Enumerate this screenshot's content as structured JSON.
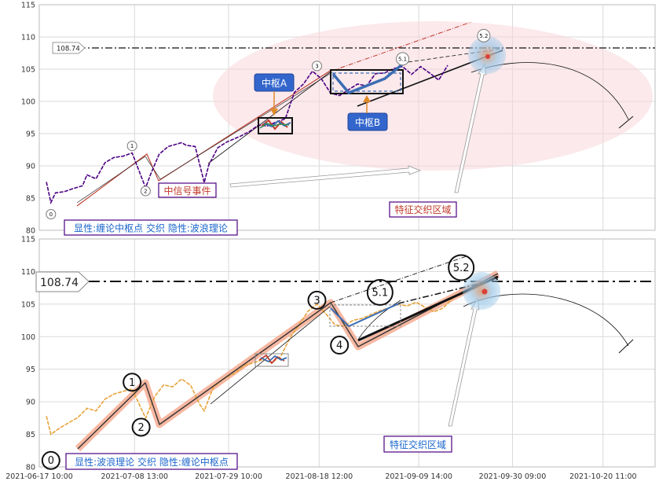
{
  "chart_data": [
    {
      "type": "line",
      "panel": "top",
      "ylim": [
        80,
        115
      ],
      "yticks": [
        80,
        85,
        90,
        95,
        100,
        105,
        110,
        115
      ],
      "xlim": [
        "2021-06-17 10:00",
        "2021-11-01 00:00"
      ],
      "grid": true,
      "hline": {
        "value": 108.74,
        "label": "108.74"
      },
      "series": [
        {
          "values": [
            [
              "2021-06-19",
              87.5
            ],
            [
              "2021-06-20",
              84.3
            ],
            [
              "2021-06-21",
              85.8
            ],
            [
              "2021-06-23",
              86.0
            ],
            [
              "2021-06-25",
              86.5
            ],
            [
              "2021-06-27",
              86.9
            ],
            [
              "2021-06-28",
              88.6
            ],
            [
              "2021-06-30",
              88.0
            ],
            [
              "2021-07-02",
              90.5
            ],
            [
              "2021-07-04",
              91.3
            ],
            [
              "2021-07-06",
              91.5
            ],
            [
              "2021-07-08",
              92.0
            ],
            [
              "2021-07-10",
              88.4
            ],
            [
              "2021-07-11",
              86.6
            ],
            [
              "2021-07-12",
              88.5
            ],
            [
              "2021-07-14",
              91.8
            ],
            [
              "2021-07-16",
              93.0
            ],
            [
              "2021-07-19",
              93.6
            ],
            [
              "2021-07-20",
              93.2
            ],
            [
              "2021-07-22",
              93.0
            ],
            [
              "2021-07-24",
              87.4
            ],
            [
              "2021-07-25",
              90.1
            ],
            [
              "2021-07-27",
              92.8
            ],
            [
              "2021-07-29",
              93.7
            ],
            [
              "2021-08-01",
              94.6
            ],
            [
              "2021-08-03",
              95.3
            ],
            [
              "2021-08-05",
              96.3
            ],
            [
              "2021-08-07",
              96.2
            ],
            [
              "2021-08-09",
              96.8
            ],
            [
              "2021-08-11",
              97.3
            ],
            [
              "2021-08-13",
              101.4
            ],
            [
              "2021-08-15",
              102.7
            ],
            [
              "2021-08-17",
              104.7
            ],
            [
              "2021-08-19",
              103.5
            ],
            [
              "2021-08-21",
              101.3
            ],
            [
              "2021-08-23",
              100.9
            ],
            [
              "2021-08-25",
              101.8
            ],
            [
              "2021-08-27",
              102.7
            ],
            [
              "2021-08-29",
              102.4
            ],
            [
              "2021-08-31",
              104.3
            ],
            [
              "2021-09-02",
              104.4
            ],
            [
              "2021-09-04",
              105.1
            ],
            [
              "2021-09-06",
              105.4
            ],
            [
              "2021-09-08",
              104.2
            ],
            [
              "2021-09-10",
              105.4
            ],
            [
              "2021-09-12",
              104.4
            ],
            [
              "2021-09-14",
              103.3
            ],
            [
              "2021-09-16",
              105.6
            ]
          ]
        }
      ],
      "pivots": [
        {
          "label": "0",
          "x": "2021-06-20",
          "y": 82.5
        },
        {
          "label": "1",
          "x": "2021-07-08",
          "y": 93.1
        },
        {
          "label": "2",
          "x": "2021-07-11",
          "y": 86.1
        },
        {
          "label": "3",
          "x": "2021-08-18",
          "y": 105.5
        },
        {
          "label": "5.1",
          "x": "2021-09-06",
          "y": 106.6
        },
        {
          "label": "5.2",
          "x": "2021-09-24",
          "y": 110.2
        }
      ],
      "annotations": [
        {
          "text": "中枢A",
          "kind": "callout"
        },
        {
          "text": "中枢B",
          "kind": "callout"
        },
        {
          "text": "中信号事件",
          "kind": "text-box"
        },
        {
          "text": "特征交织区域",
          "kind": "text-box"
        },
        {
          "text": "显性:缠论中枢点 交织 隐性:波浪理论",
          "kind": "text-box"
        }
      ]
    },
    {
      "type": "line",
      "panel": "bottom",
      "ylim": [
        80,
        115
      ],
      "yticks": [
        80,
        85,
        90,
        95,
        100,
        105,
        110,
        115
      ],
      "xlim": [
        "2021-06-17 10:00",
        "2021-11-01 00:00"
      ],
      "xticks": [
        "2021-06-17 10:00",
        "2021-07-08 13:00",
        "2021-07-29 10:00",
        "2021-08-18 12:00",
        "2021-09-09 14:00",
        "2021-09-30 09:00",
        "2021-10-20 11:00"
      ],
      "grid": true,
      "hline": {
        "value": 108.74,
        "label": "108.74"
      },
      "series": [
        {
          "values": [
            [
              "2021-06-19",
              87.8
            ],
            [
              "2021-06-20",
              85.0
            ],
            [
              "2021-06-22",
              86.0
            ],
            [
              "2021-06-24",
              86.8
            ],
            [
              "2021-06-26",
              87.6
            ],
            [
              "2021-06-28",
              89.0
            ],
            [
              "2021-06-30",
              88.6
            ],
            [
              "2021-07-02",
              90.4
            ],
            [
              "2021-07-04",
              91.2
            ],
            [
              "2021-07-06",
              91.6
            ],
            [
              "2021-07-08",
              92.0
            ],
            [
              "2021-07-10",
              89.0
            ],
            [
              "2021-07-11",
              87.5
            ],
            [
              "2021-07-13",
              90.8
            ],
            [
              "2021-07-15",
              92.6
            ],
            [
              "2021-07-17",
              92.3
            ],
            [
              "2021-07-19",
              93.5
            ],
            [
              "2021-07-21",
              92.5
            ],
            [
              "2021-07-23",
              89.6
            ],
            [
              "2021-07-24",
              88.6
            ],
            [
              "2021-07-26",
              92.2
            ],
            [
              "2021-07-28",
              93.4
            ],
            [
              "2021-07-31",
              94.5
            ],
            [
              "2021-08-02",
              95.6
            ],
            [
              "2021-08-04",
              96.0
            ],
            [
              "2021-08-06",
              96.5
            ],
            [
              "2021-08-08",
              96.0
            ],
            [
              "2021-08-10",
              97.0
            ],
            [
              "2021-08-12",
              99.8
            ],
            [
              "2021-08-14",
              101.8
            ],
            [
              "2021-08-16",
              103.9
            ],
            [
              "2021-08-18",
              105.0
            ],
            [
              "2021-08-20",
              103.5
            ],
            [
              "2021-08-22",
              101.8
            ],
            [
              "2021-08-24",
              101.6
            ],
            [
              "2021-08-26",
              102.5
            ],
            [
              "2021-08-28",
              102.8
            ],
            [
              "2021-08-30",
              103.4
            ],
            [
              "2021-09-01",
              104.0
            ],
            [
              "2021-09-03",
              104.4
            ],
            [
              "2021-09-05",
              105.0
            ],
            [
              "2021-09-07",
              104.7
            ],
            [
              "2021-09-09",
              105.3
            ],
            [
              "2021-09-11",
              104.5
            ],
            [
              "2021-09-13",
              103.8
            ],
            [
              "2021-09-15",
              104.4
            ],
            [
              "2021-09-17",
              105.8
            ]
          ]
        }
      ],
      "pivots": [
        {
          "label": "0",
          "x": "2021-06-20",
          "y": 81.0
        },
        {
          "label": "1",
          "x": "2021-07-08",
          "y": 93.0
        },
        {
          "label": "2",
          "x": "2021-07-10",
          "y": 86.1
        },
        {
          "label": "3",
          "x": "2021-08-18",
          "y": 105.6
        },
        {
          "label": "4",
          "x": "2021-08-23",
          "y": 98.7
        },
        {
          "label": "5.1",
          "x": "2021-09-01",
          "y": 106.8
        },
        {
          "label": "5.2",
          "x": "2021-09-19",
          "y": 110.6
        }
      ],
      "annotations": [
        {
          "text": "特征交织区域",
          "kind": "text-box"
        },
        {
          "text": "显性:波浪理论 交织 隐性:缠论中枢点",
          "kind": "text-box"
        }
      ]
    }
  ],
  "colors": {
    "price_top": "#4b0082",
    "price_bottom": "#e8a33a",
    "trend_line": "#c0392b",
    "center_box_blue": "#3b6db3",
    "callout_fill": "#3366cc",
    "highlight_band": "#f4a083",
    "ellipse_fill": "#f8d7dc",
    "label_text_blue": "#1a66cc",
    "label_text_red": "#c0392b"
  }
}
